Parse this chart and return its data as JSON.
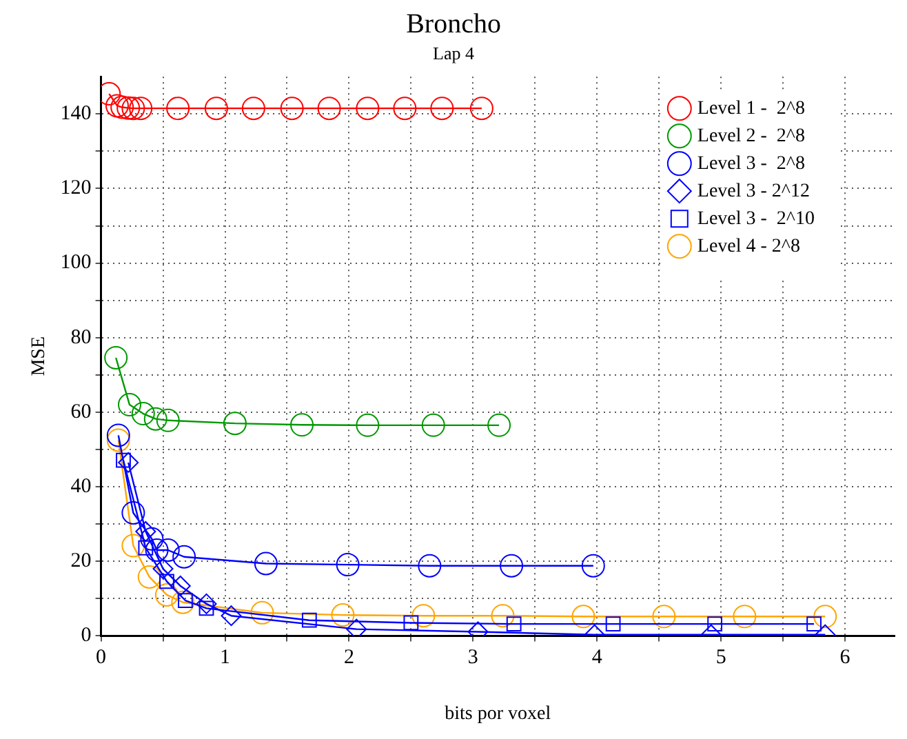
{
  "chart_data": {
    "type": "line",
    "title": "Broncho",
    "subtitle": "Lap 4",
    "xlabel": "bits por voxel",
    "ylabel": "MSE",
    "xlim": [
      0,
      6.4
    ],
    "ylim": [
      0,
      150
    ],
    "xticks": [
      0,
      {
        "value": 0.5,
        "label": null
      },
      1,
      {
        "value": 1.5,
        "label": null
      },
      2,
      {
        "value": 2.5,
        "label": null
      },
      3,
      {
        "value": 3.5,
        "label": null
      },
      4,
      {
        "value": 4.5,
        "label": null
      },
      5,
      {
        "value": 5.5,
        "label": null
      },
      6
    ],
    "yticks": [
      0,
      {
        "value": 10,
        "label": null
      },
      20,
      {
        "value": 30,
        "label": null
      },
      40,
      {
        "value": 50,
        "label": null
      },
      60,
      {
        "value": 70,
        "label": null
      },
      80,
      {
        "value": 90,
        "label": null
      },
      100,
      {
        "value": 110,
        "label": null
      },
      120,
      {
        "value": 130,
        "label": null
      },
      140
    ],
    "grid": true,
    "legend": "top right",
    "line_style": "solid",
    "series": [
      {
        "name": "Level 1 -  2^8",
        "color": "#ff0000",
        "marker": "circle",
        "x": [
          0.065,
          0.13,
          0.17,
          0.22,
          0.26,
          0.32,
          0.62,
          0.93,
          1.23,
          1.54,
          1.84,
          2.15,
          2.45,
          2.75,
          3.07
        ],
        "values": [
          145.4,
          142.2,
          141.8,
          141.6,
          141.5,
          141.5,
          141.5,
          141.5,
          141.5,
          141.5,
          141.5,
          141.5,
          141.5,
          141.5,
          141.5
        ]
      },
      {
        "name": "Level 2 -  2^8",
        "color": "#009900",
        "marker": "circle",
        "x": [
          0.12,
          0.23,
          0.34,
          0.44,
          0.54,
          1.08,
          1.62,
          2.15,
          2.68,
          3.21
        ],
        "values": [
          74.6,
          62,
          59.6,
          58.2,
          57.8,
          57,
          56.6,
          56.5,
          56.5,
          56.5
        ]
      },
      {
        "name": "Level 3 -  2^8",
        "color": "#0000ff",
        "marker": "circle",
        "x": [
          0.14,
          0.26,
          0.41,
          0.45,
          0.54,
          0.67,
          1.33,
          1.99,
          2.65,
          3.31,
          3.97
        ],
        "values": [
          53.8,
          33,
          26,
          23,
          23,
          21.2,
          19.4,
          19.1,
          18.8,
          18.8,
          18.8
        ]
      },
      {
        "name": "Level 3 - 2^12",
        "color": "#0000ff",
        "marker": "diamond",
        "x": [
          0.22,
          0.36,
          0.5,
          0.64,
          0.85,
          1.05,
          2.06,
          3.04,
          3.98,
          4.92,
          5.84
        ],
        "values": [
          46.5,
          28,
          18,
          13.4,
          8.6,
          5.4,
          1.8,
          1.1,
          0.3,
          0.3,
          0.3
        ]
      },
      {
        "name": "Level 3 -  2^10",
        "color": "#0000ff",
        "marker": "square",
        "x": [
          0.18,
          0.36,
          0.53,
          0.68,
          0.85,
          1.68,
          2.5,
          3.33,
          4.13,
          4.95,
          5.75
        ],
        "values": [
          47.1,
          23.6,
          14.6,
          9.5,
          7.4,
          4.2,
          3.5,
          3.2,
          3.2,
          3.2,
          3.2
        ]
      },
      {
        "name": "Level 4 - 2^8",
        "color": "#ffa500",
        "marker": "circle",
        "x": [
          0.14,
          0.26,
          0.39,
          0.53,
          0.66,
          1.3,
          1.95,
          2.6,
          3.24,
          3.89,
          4.54,
          5.19,
          5.84
        ],
        "values": [
          52.5,
          24.2,
          15.8,
          11,
          9,
          6.2,
          5.6,
          5.4,
          5.4,
          5.2,
          5.2,
          5.2,
          5.2
        ]
      }
    ]
  }
}
